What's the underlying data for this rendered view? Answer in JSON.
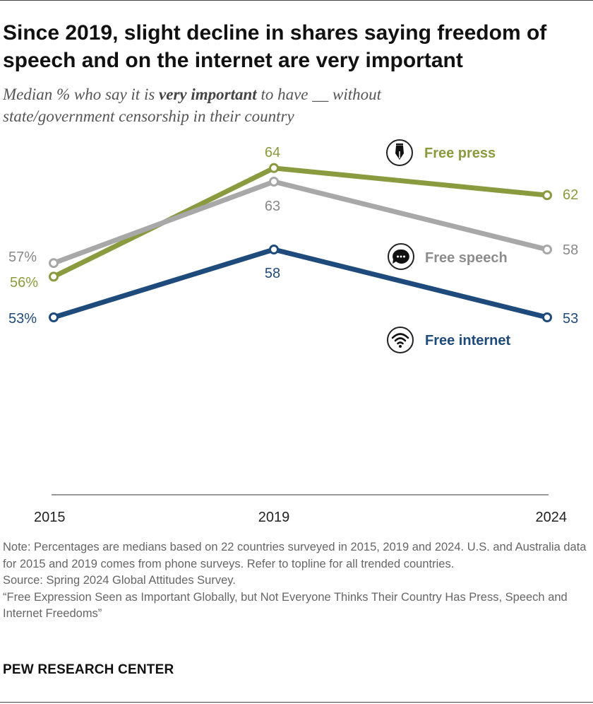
{
  "title": "Since 2019, slight decline in shares saying freedom of speech and on the internet are very important",
  "subtitle": {
    "pre": "Median % who say it is ",
    "bold": "very important",
    "post": " to have __ without state/government censorship in their country"
  },
  "chart_data": {
    "type": "line",
    "x": [
      "2015",
      "2019",
      "2024"
    ],
    "ylim": [
      40,
      70
    ],
    "series": [
      {
        "name": "Free press",
        "values": [
          56,
          64,
          62
        ],
        "labels": [
          "56%",
          "64",
          "62"
        ],
        "color": "#8a9a3e",
        "icon": "pen-nib-icon"
      },
      {
        "name": "Free speech",
        "values": [
          57,
          63,
          58
        ],
        "labels": [
          "57%",
          "63",
          "58"
        ],
        "color": "#a8a8a8",
        "icon": "speech-bubble-icon"
      },
      {
        "name": "Free internet",
        "values": [
          53,
          58,
          53
        ],
        "labels": [
          "53%",
          "58",
          "53"
        ],
        "color": "#1f4a7c",
        "icon": "wifi-icon"
      }
    ]
  },
  "notes": {
    "note": "Note: Percentages are medians based on 22 countries surveyed in 2015, 2019 and 2024. U.S. and Australia data for 2015 and 2019 comes from phone surveys. Refer to topline for all trended countries.",
    "source": "Source: Spring 2024 Global Attitudes Survey.",
    "report": "“Free Expression Seen as Important Globally, but Not Everyone Thinks Their Country Has Press, Speech and Internet Freedoms”"
  },
  "brand": "PEW RESEARCH CENTER"
}
